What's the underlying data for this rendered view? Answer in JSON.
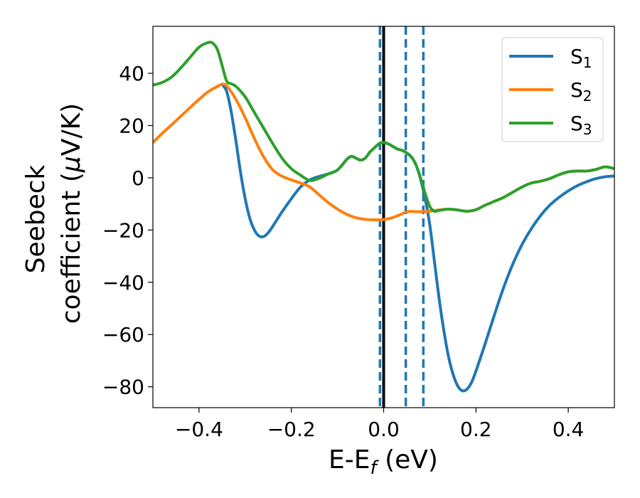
{
  "chart_data": {
    "type": "line",
    "xlabel": {
      "base": "E-E",
      "sub": "f",
      "tail": " (eV)"
    },
    "ylabel": {
      "line1": "Seebeck",
      "line2": "coefficient  (",
      "mu": "μ",
      "line2_tail": "V/K)"
    },
    "xlim": [
      -0.5,
      0.5
    ],
    "ylim": [
      -88,
      58
    ],
    "xticks": [
      -0.4,
      -0.2,
      0.0,
      0.2,
      0.4
    ],
    "xtick_labels": [
      "−0.4",
      "−0.2",
      "0.0",
      "0.2",
      "0.4"
    ],
    "yticks": [
      40,
      20,
      0,
      -20,
      -40,
      -60,
      -80
    ],
    "ytick_labels": [
      "40",
      "20",
      "0",
      "−20",
      "−40",
      "−60",
      "−80"
    ],
    "grid": false,
    "legend_position": "top-right",
    "series": [
      {
        "name": "S",
        "sub": "1",
        "color": "#1f77b4",
        "points": [
          [
            -0.35,
            35.8
          ],
          [
            -0.34,
            33
          ],
          [
            -0.33,
            25
          ],
          [
            -0.32,
            14
          ],
          [
            -0.31,
            2
          ],
          [
            -0.3,
            -8
          ],
          [
            -0.29,
            -15.5
          ],
          [
            -0.28,
            -20
          ],
          [
            -0.27,
            -22.3
          ],
          [
            -0.26,
            -22.5
          ],
          [
            -0.25,
            -21
          ],
          [
            -0.24,
            -18.5
          ],
          [
            -0.22,
            -13
          ],
          [
            -0.2,
            -8
          ],
          [
            -0.18,
            -3.5
          ],
          [
            -0.16,
            -0.8
          ],
          [
            -0.14,
            0.5
          ],
          [
            -0.12,
            1.5
          ],
          [
            -0.1,
            3
          ],
          [
            -0.08,
            7
          ],
          [
            -0.07,
            8.2
          ],
          [
            -0.06,
            7.5
          ],
          [
            -0.05,
            6.8
          ],
          [
            -0.04,
            7.5
          ],
          [
            -0.03,
            9.8
          ],
          [
            -0.02,
            11.5
          ],
          [
            -0.01,
            13
          ],
          [
            0.0,
            13.5
          ],
          [
            0.01,
            13
          ],
          [
            0.02,
            12
          ],
          [
            0.03,
            11
          ],
          [
            0.04,
            10.5
          ],
          [
            0.05,
            9.5
          ],
          [
            0.06,
            8
          ],
          [
            0.07,
            5
          ],
          [
            0.08,
            -0.5
          ],
          [
            0.09,
            -8
          ],
          [
            0.1,
            -18
          ],
          [
            0.11,
            -32
          ],
          [
            0.12,
            -46
          ],
          [
            0.13,
            -58
          ],
          [
            0.14,
            -68
          ],
          [
            0.15,
            -75
          ],
          [
            0.16,
            -79.5
          ],
          [
            0.17,
            -81.5
          ],
          [
            0.18,
            -81
          ],
          [
            0.19,
            -78.5
          ],
          [
            0.2,
            -74
          ],
          [
            0.22,
            -63.5
          ],
          [
            0.24,
            -52.5
          ],
          [
            0.26,
            -42
          ],
          [
            0.28,
            -33
          ],
          [
            0.3,
            -25.5
          ],
          [
            0.32,
            -19.5
          ],
          [
            0.34,
            -14.5
          ],
          [
            0.36,
            -10.5
          ],
          [
            0.38,
            -7.5
          ],
          [
            0.4,
            -5
          ],
          [
            0.42,
            -3
          ],
          [
            0.44,
            -1.5
          ],
          [
            0.46,
            -0.3
          ],
          [
            0.48,
            0.4
          ],
          [
            0.5,
            0.7
          ]
        ]
      },
      {
        "name": "S",
        "sub": "2",
        "color": "#ff7f0e",
        "points": [
          [
            -0.5,
            13.5
          ],
          [
            -0.48,
            17
          ],
          [
            -0.46,
            20.2
          ],
          [
            -0.44,
            23.5
          ],
          [
            -0.42,
            26.8
          ],
          [
            -0.4,
            30
          ],
          [
            -0.38,
            33
          ],
          [
            -0.36,
            35
          ],
          [
            -0.35,
            35.8
          ],
          [
            -0.34,
            35.2
          ],
          [
            -0.32,
            30
          ],
          [
            -0.3,
            23
          ],
          [
            -0.28,
            15
          ],
          [
            -0.26,
            8
          ],
          [
            -0.24,
            3
          ],
          [
            -0.22,
            0.6
          ],
          [
            -0.2,
            -0.8
          ],
          [
            -0.18,
            -2
          ],
          [
            -0.16,
            -3.5
          ],
          [
            -0.14,
            -6.5
          ],
          [
            -0.12,
            -9.5
          ],
          [
            -0.1,
            -12
          ],
          [
            -0.08,
            -14
          ],
          [
            -0.06,
            -15.3
          ],
          [
            -0.04,
            -15.9
          ],
          [
            -0.02,
            -16.1
          ],
          [
            0.0,
            -16
          ],
          [
            0.02,
            -15.2
          ],
          [
            0.04,
            -13.8
          ],
          [
            0.05,
            -13
          ],
          [
            0.06,
            -12.9
          ],
          [
            0.08,
            -13
          ],
          [
            0.1,
            -12.8
          ],
          [
            0.12,
            -12.3
          ],
          [
            0.14,
            -12
          ],
          [
            0.16,
            -12.3
          ],
          [
            0.18,
            -12.8
          ],
          [
            0.2,
            -12.2
          ],
          [
            0.22,
            -10.5
          ],
          [
            0.24,
            -9
          ],
          [
            0.26,
            -7.5
          ],
          [
            0.28,
            -5.5
          ],
          [
            0.3,
            -3.5
          ],
          [
            0.32,
            -2
          ],
          [
            0.34,
            -1.3
          ],
          [
            0.36,
            -0.3
          ],
          [
            0.38,
            1.2
          ],
          [
            0.4,
            2.3
          ],
          [
            0.42,
            2.6
          ],
          [
            0.44,
            2.6
          ],
          [
            0.46,
            3.2
          ],
          [
            0.48,
            4.2
          ],
          [
            0.5,
            3.5
          ]
        ]
      },
      {
        "name": "S",
        "sub": "3",
        "color": "#2ca02c",
        "points": [
          [
            -0.5,
            35.5
          ],
          [
            -0.48,
            36.5
          ],
          [
            -0.46,
            38.5
          ],
          [
            -0.44,
            42
          ],
          [
            -0.42,
            46
          ],
          [
            -0.4,
            50
          ],
          [
            -0.38,
            51.8
          ],
          [
            -0.37,
            51.5
          ],
          [
            -0.36,
            49
          ],
          [
            -0.35,
            43
          ],
          [
            -0.34,
            37
          ],
          [
            -0.33,
            36
          ],
          [
            -0.32,
            35
          ],
          [
            -0.3,
            31
          ],
          [
            -0.28,
            25
          ],
          [
            -0.26,
            19
          ],
          [
            -0.24,
            13
          ],
          [
            -0.22,
            7.5
          ],
          [
            -0.2,
            3.5
          ],
          [
            -0.18,
            1
          ],
          [
            -0.16,
            -1
          ],
          [
            -0.14,
            -0.2
          ],
          [
            -0.12,
            1.5
          ],
          [
            -0.1,
            3
          ],
          [
            -0.08,
            7
          ],
          [
            -0.07,
            8.2
          ],
          [
            -0.06,
            7.5
          ],
          [
            -0.05,
            6.8
          ],
          [
            -0.04,
            7.5
          ],
          [
            -0.03,
            9.8
          ],
          [
            -0.02,
            11.5
          ],
          [
            -0.01,
            13
          ],
          [
            0.0,
            13.5
          ],
          [
            0.01,
            13
          ],
          [
            0.02,
            12
          ],
          [
            0.03,
            11
          ],
          [
            0.04,
            10.5
          ],
          [
            0.05,
            9.5
          ],
          [
            0.06,
            8
          ],
          [
            0.07,
            5
          ],
          [
            0.08,
            0
          ],
          [
            0.09,
            -6
          ],
          [
            0.1,
            -11
          ],
          [
            0.11,
            -12.8
          ],
          [
            0.12,
            -12.5
          ],
          [
            0.14,
            -12
          ],
          [
            0.16,
            -12.3
          ],
          [
            0.18,
            -12.8
          ],
          [
            0.2,
            -12.2
          ],
          [
            0.22,
            -10.5
          ],
          [
            0.24,
            -9
          ],
          [
            0.26,
            -7.5
          ],
          [
            0.28,
            -5.5
          ],
          [
            0.3,
            -3.5
          ],
          [
            0.32,
            -2
          ],
          [
            0.34,
            -1.3
          ],
          [
            0.36,
            -0.3
          ],
          [
            0.38,
            1.2
          ],
          [
            0.4,
            2.3
          ],
          [
            0.42,
            2.6
          ],
          [
            0.44,
            2.6
          ],
          [
            0.46,
            3.2
          ],
          [
            0.48,
            4.2
          ],
          [
            0.5,
            3.5
          ]
        ]
      }
    ],
    "vlines": [
      {
        "x": 0.0,
        "style": "solid",
        "color": "#000000"
      },
      {
        "x": -0.008,
        "style": "dashed",
        "color": "#1f77b4"
      },
      {
        "x": 0.048,
        "style": "dashed",
        "color": "#1f77b4"
      },
      {
        "x": 0.086,
        "style": "dashed",
        "color": "#1f77b4"
      }
    ]
  }
}
